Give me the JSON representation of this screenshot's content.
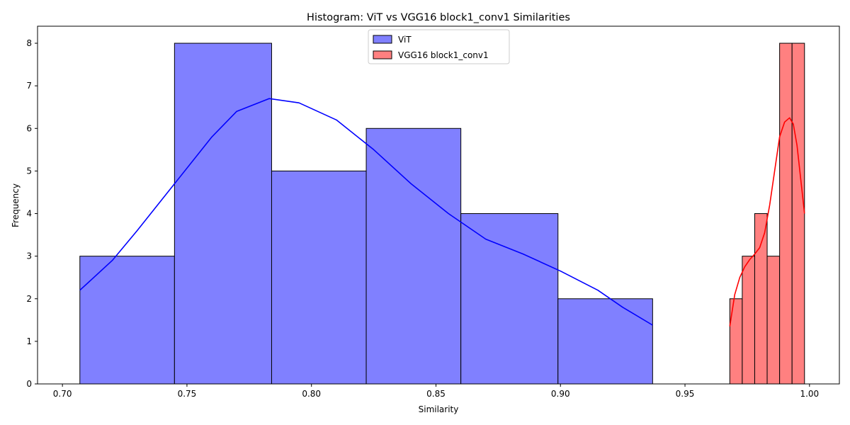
{
  "chart_data": {
    "type": "histogram",
    "title": "Histogram: ViT vs VGG16 block1_conv1 Similarities",
    "xlabel": "Similarity",
    "ylabel": "Frequency",
    "xlim": [
      0.69,
      1.012
    ],
    "ylim": [
      0,
      8.4
    ],
    "x_ticks": [
      "0.70",
      "0.75",
      "0.80",
      "0.85",
      "0.90",
      "0.95",
      "1.00"
    ],
    "x_tick_values": [
      0.7,
      0.75,
      0.8,
      0.85,
      0.9,
      0.95,
      1.0
    ],
    "y_ticks": [
      "0",
      "1",
      "2",
      "3",
      "4",
      "5",
      "6",
      "7",
      "8"
    ],
    "y_tick_values": [
      0,
      1,
      2,
      3,
      4,
      5,
      6,
      7,
      8
    ],
    "grid": false,
    "legend_position": "top-center",
    "series": [
      {
        "name": "ViT",
        "color": "#8080ff",
        "kde_color": "#0000ff",
        "bins": [
          {
            "x0": 0.707,
            "x1": 0.745,
            "count": 3
          },
          {
            "x0": 0.745,
            "x1": 0.784,
            "count": 8
          },
          {
            "x0": 0.784,
            "x1": 0.822,
            "count": 5
          },
          {
            "x0": 0.822,
            "x1": 0.86,
            "count": 6
          },
          {
            "x0": 0.86,
            "x1": 0.899,
            "count": 4
          },
          {
            "x0": 0.899,
            "x1": 0.937,
            "count": 2
          }
        ],
        "kde": [
          [
            0.707,
            2.2
          ],
          [
            0.72,
            2.9
          ],
          [
            0.73,
            3.6
          ],
          [
            0.745,
            4.7
          ],
          [
            0.76,
            5.8
          ],
          [
            0.77,
            6.4
          ],
          [
            0.783,
            6.7
          ],
          [
            0.795,
            6.6
          ],
          [
            0.81,
            6.2
          ],
          [
            0.825,
            5.5
          ],
          [
            0.84,
            4.7
          ],
          [
            0.855,
            4.0
          ],
          [
            0.87,
            3.4
          ],
          [
            0.885,
            3.05
          ],
          [
            0.9,
            2.65
          ],
          [
            0.915,
            2.2
          ],
          [
            0.925,
            1.8
          ],
          [
            0.937,
            1.38
          ]
        ]
      },
      {
        "name": "VGG16 block1_conv1",
        "color": "#ff8080",
        "kde_color": "#ff0000",
        "bins": [
          {
            "x0": 0.968,
            "x1": 0.973,
            "count": 2
          },
          {
            "x0": 0.973,
            "x1": 0.978,
            "count": 3
          },
          {
            "x0": 0.978,
            "x1": 0.983,
            "count": 4
          },
          {
            "x0": 0.983,
            "x1": 0.988,
            "count": 3
          },
          {
            "x0": 0.988,
            "x1": 0.993,
            "count": 8
          },
          {
            "x0": 0.993,
            "x1": 0.998,
            "count": 8
          }
        ],
        "kde": [
          [
            0.968,
            1.35
          ],
          [
            0.97,
            2.1
          ],
          [
            0.972,
            2.5
          ],
          [
            0.974,
            2.75
          ],
          [
            0.976,
            2.92
          ],
          [
            0.978,
            3.05
          ],
          [
            0.98,
            3.2
          ],
          [
            0.982,
            3.55
          ],
          [
            0.984,
            4.2
          ],
          [
            0.986,
            5.0
          ],
          [
            0.988,
            5.8
          ],
          [
            0.99,
            6.15
          ],
          [
            0.992,
            6.25
          ],
          [
            0.9935,
            6.1
          ],
          [
            0.995,
            5.6
          ],
          [
            0.9965,
            4.8
          ],
          [
            0.998,
            4.0
          ]
        ]
      }
    ]
  }
}
